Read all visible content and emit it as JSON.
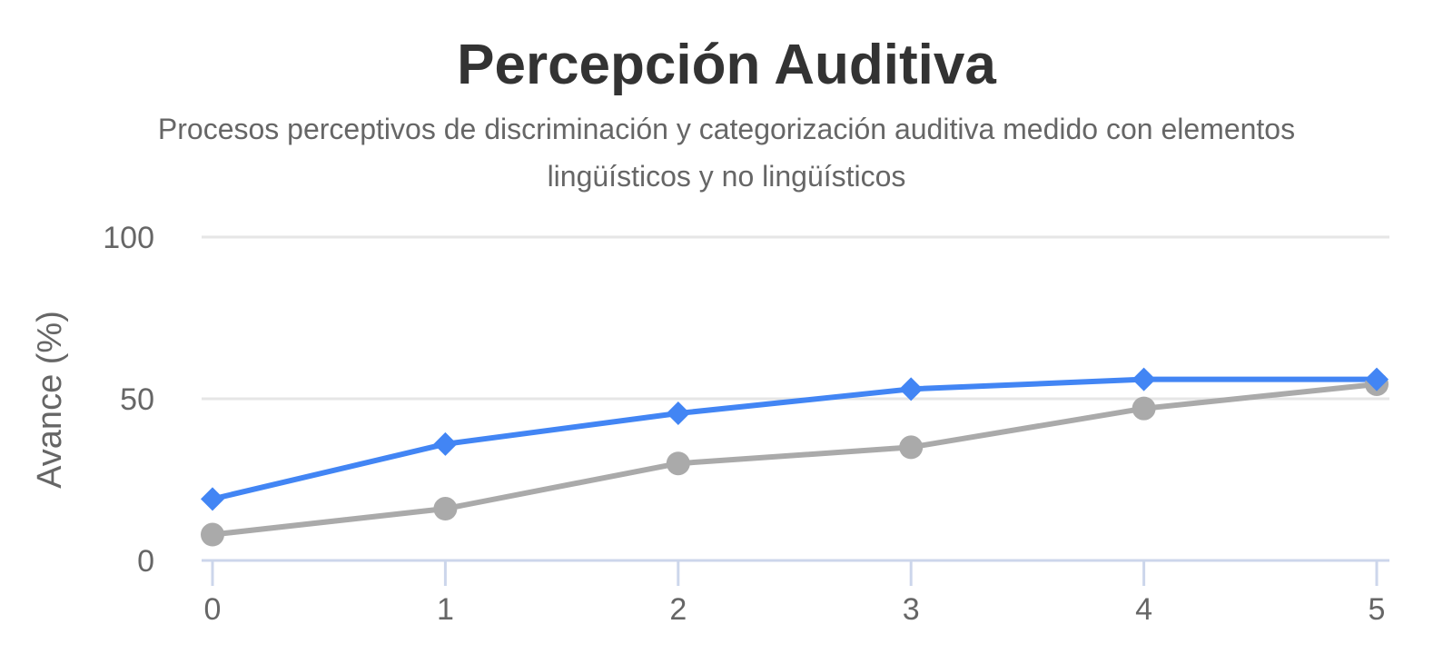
{
  "chart_data": {
    "type": "line",
    "title": "Percepción Auditiva",
    "subtitle": "Procesos perceptivos de discriminación y categorización auditiva medido con elementos lingüísticos y no lingüísticos",
    "xlabel": "",
    "ylabel": "Avance (%)",
    "x": [
      0,
      1,
      2,
      3,
      4,
      5
    ],
    "ylim": [
      0,
      100
    ],
    "yticks": [
      0,
      50,
      100
    ],
    "grid": true,
    "legend": "none",
    "series": [
      {
        "values": [
          19,
          36,
          45.5,
          53,
          56,
          56
        ],
        "color": "#4285f4",
        "marker": "diamond"
      },
      {
        "values": [
          8,
          16,
          30,
          35,
          47,
          54.5
        ],
        "color": "#aaaaaa",
        "marker": "circle"
      }
    ]
  },
  "colors": {
    "title": "#333333",
    "text": "#666666",
    "gridline": "#e6e6e6",
    "axis": "#ccd6eb"
  }
}
